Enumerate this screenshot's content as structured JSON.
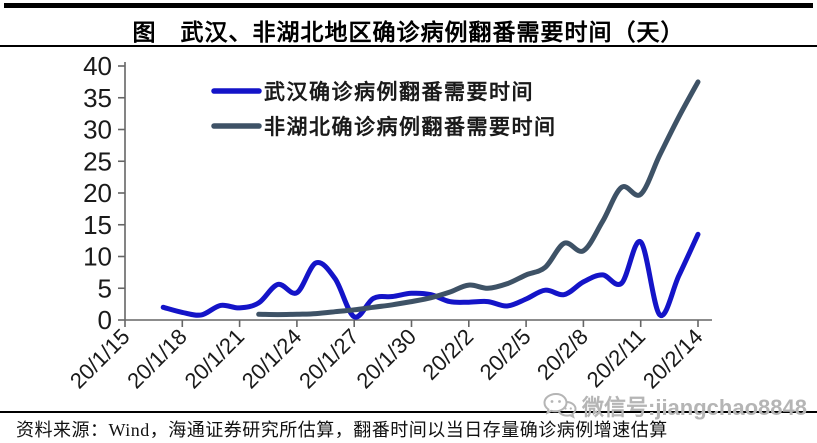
{
  "page": {
    "title": "图　武汉、非湖北地区确诊病例翻番需要时间（天）",
    "footer": "资料来源：Wind，海通证券研究所估算，翻番时间以当日存量确诊病例增速估算",
    "watermark": {
      "icon": "wechat-icon",
      "text": "微信号:jiangchao8848",
      "color": "#b5b5b5"
    }
  },
  "chart_data": {
    "type": "line",
    "title": "图　武汉、非湖北地区确诊病例翻番需要时间（天）",
    "xlabel": "",
    "ylabel": "",
    "ylim": [
      0,
      40
    ],
    "y_ticks": [
      0,
      5,
      10,
      15,
      20,
      25,
      30,
      35,
      40
    ],
    "x_tick_labels": [
      "20/1/15",
      "20/1/18",
      "20/1/21",
      "20/1/24",
      "20/1/27",
      "20/1/30",
      "20/2/2",
      "20/2/5",
      "20/2/8",
      "20/2/11",
      "20/2/14"
    ],
    "grid": false,
    "legend_position": "top-left-inside",
    "axis_color": "#666666",
    "series": [
      {
        "name": "武汉确诊病例翻番需要时间",
        "color": "#1414c8",
        "x": [
          "20/1/17",
          "20/1/18",
          "20/1/19",
          "20/1/20",
          "20/1/21",
          "20/1/22",
          "20/1/23",
          "20/1/24",
          "20/1/25",
          "20/1/26",
          "20/1/27",
          "20/1/28",
          "20/1/29",
          "20/1/30",
          "20/1/31",
          "20/2/1",
          "20/2/2",
          "20/2/3",
          "20/2/4",
          "20/2/5",
          "20/2/6",
          "20/2/7",
          "20/2/8",
          "20/2/9",
          "20/2/10",
          "20/2/11",
          "20/2/12",
          "20/2/13",
          "20/2/14"
        ],
        "values": [
          2.0,
          1.2,
          0.8,
          2.3,
          1.9,
          2.7,
          5.6,
          4.3,
          9.0,
          6.5,
          0.5,
          3.4,
          3.7,
          4.2,
          4.0,
          2.9,
          2.8,
          2.9,
          2.2,
          3.3,
          4.7,
          4.0,
          6.0,
          7.1,
          5.8,
          12.3,
          0.8,
          7.0,
          13.5
        ]
      },
      {
        "name": "非湖北确诊病例翻番需要时间",
        "color": "#3e5266",
        "x": [
          "20/1/22",
          "20/1/23",
          "20/1/24",
          "20/1/25",
          "20/1/26",
          "20/1/27",
          "20/1/28",
          "20/1/29",
          "20/1/30",
          "20/1/31",
          "20/2/1",
          "20/2/2",
          "20/2/3",
          "20/2/4",
          "20/2/5",
          "20/2/6",
          "20/2/7",
          "20/2/8",
          "20/2/9",
          "20/2/10",
          "20/2/11",
          "20/2/12",
          "20/2/13",
          "20/2/14"
        ],
        "values": [
          0.9,
          0.85,
          0.9,
          1.0,
          1.3,
          1.6,
          2.0,
          2.4,
          2.9,
          3.5,
          4.4,
          5.5,
          5.0,
          5.7,
          7.1,
          8.3,
          12.1,
          10.9,
          15.5,
          20.9,
          19.8,
          26.0,
          32.0,
          37.5
        ]
      }
    ]
  }
}
